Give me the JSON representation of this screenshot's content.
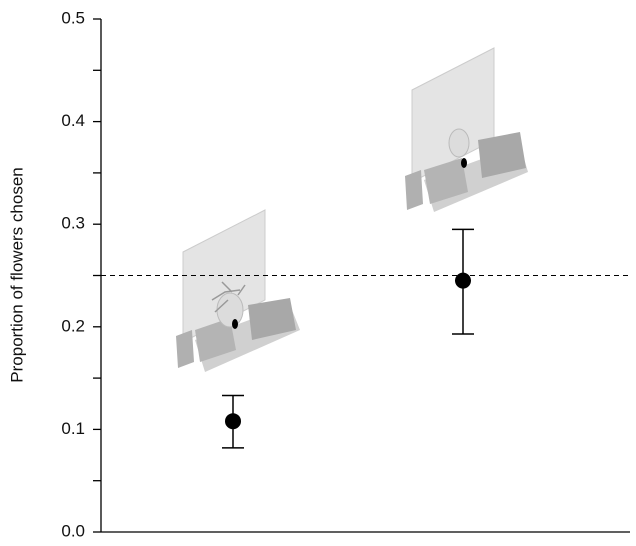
{
  "chart_data": {
    "type": "errorbar",
    "y_label": "Proportion of flowers chosen",
    "categories": [
      null,
      null
    ],
    "values": [
      0.108,
      0.245
    ],
    "lower": [
      0.082,
      0.193
    ],
    "upper": [
      0.133,
      0.295
    ],
    "color": "#000000",
    "ylim": [
      0,
      0.5
    ],
    "yticks": [
      {
        "value": 0,
        "label": "0.0"
      },
      0.1,
      0.2,
      0.3,
      0.4,
      0.5
    ],
    "yminorticks": [
      0.05,
      0.15,
      0.25,
      0.35,
      0.45
    ],
    "reference_line": 0.25,
    "reference_style": "dashed"
  }
}
